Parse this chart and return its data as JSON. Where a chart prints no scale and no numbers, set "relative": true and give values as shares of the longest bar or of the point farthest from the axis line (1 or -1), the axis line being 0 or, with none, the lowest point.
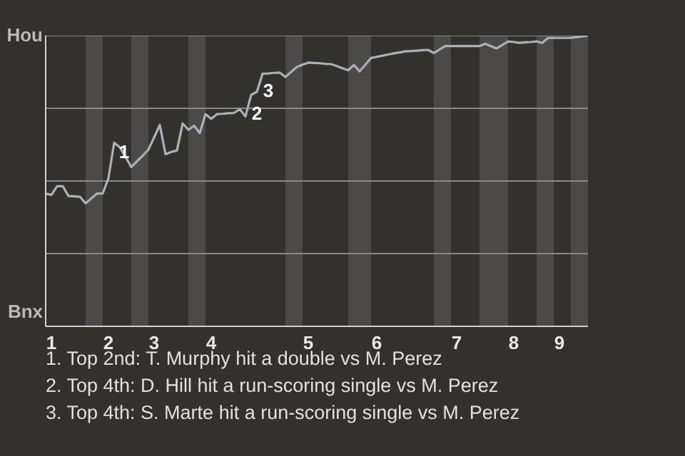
{
  "chart_data": {
    "type": "line",
    "relative": true,
    "categories": [
      null,
      "1",
      null,
      null,
      null,
      null,
      null,
      null,
      null,
      null,
      null,
      "2",
      null,
      null,
      null,
      null,
      null,
      null,
      null,
      "3",
      null,
      null,
      null,
      null,
      null,
      null,
      null,
      null,
      null,
      "4",
      null,
      null,
      null,
      null,
      null,
      null,
      null,
      null,
      null,
      null,
      null,
      null,
      null,
      null,
      null,
      null,
      "5",
      null,
      null,
      null,
      null,
      null,
      null,
      null,
      null,
      null,
      null,
      null,
      "6",
      null,
      null,
      null,
      null,
      null,
      null,
      null,
      null,
      null,
      null,
      null,
      null,
      null,
      "7",
      null,
      null,
      null,
      null,
      null,
      null,
      null,
      null,
      null,
      "8",
      null,
      null,
      null,
      null,
      null,
      null,
      null,
      "9",
      null,
      null,
      null,
      null,
      null
    ],
    "series": [
      {
        "color": "#aab1b6",
        "values": [
          0.457,
          0.452,
          0.482,
          0.482,
          0.448,
          0.447,
          0.446,
          0.423,
          0.44,
          0.457,
          0.457,
          0.51,
          0.632,
          0.616,
          0.582,
          0.548,
          0.568,
          0.587,
          0.608,
          0.65,
          0.693,
          0.592,
          0.6,
          0.605,
          0.698,
          0.676,
          0.69,
          0.665,
          0.73,
          0.714,
          0.73,
          0.731,
          0.733,
          0.734,
          0.747,
          0.722,
          0.796,
          0.807,
          0.869,
          0.87,
          0.872,
          0.873,
          0.858,
          0.875,
          0.892,
          0.9,
          0.907,
          0.906,
          0.905,
          0.903,
          0.902,
          0.895,
          0.888,
          0.881,
          0.899,
          0.877,
          0.9,
          0.923,
          0.927,
          0.931,
          0.935,
          0.939,
          0.942,
          0.946,
          0.947,
          0.948,
          0.95,
          0.951,
          0.94,
          0.952,
          0.964,
          0.964,
          0.964,
          0.964,
          0.964,
          0.964,
          0.964,
          0.972,
          0.964,
          0.956,
          0.968,
          0.98,
          0.978,
          0.975,
          0.977,
          0.978,
          0.98,
          0.975,
          0.992,
          0.992,
          0.992,
          0.992,
          0.992,
          0.995,
          0.997,
          1
        ]
      }
    ],
    "legend": false,
    "marker": "none",
    "line_style": "solid",
    "ref_lines": [
      {
        "axis": "y",
        "value": 0.25,
        "color": "#8a8987"
      },
      {
        "axis": "y",
        "value": 0.5,
        "color": "#8a8987"
      },
      {
        "axis": "y",
        "value": 0.75,
        "color": "#8a8987"
      },
      {
        "axis": "y",
        "value": 1,
        "color": "#8a8987"
      }
    ],
    "annotations": [
      "Hou",
      "Bnx",
      "1",
      "2",
      "3",
      "1. Top 2nd: T. Murphy hit a double vs M. Perez",
      "2. Top 4th: D. Hill hit a run-scoring single vs M. Perez",
      "3. Top 4th: S. Marte hit a run-scoring single vs M. Perez"
    ]
  }
}
